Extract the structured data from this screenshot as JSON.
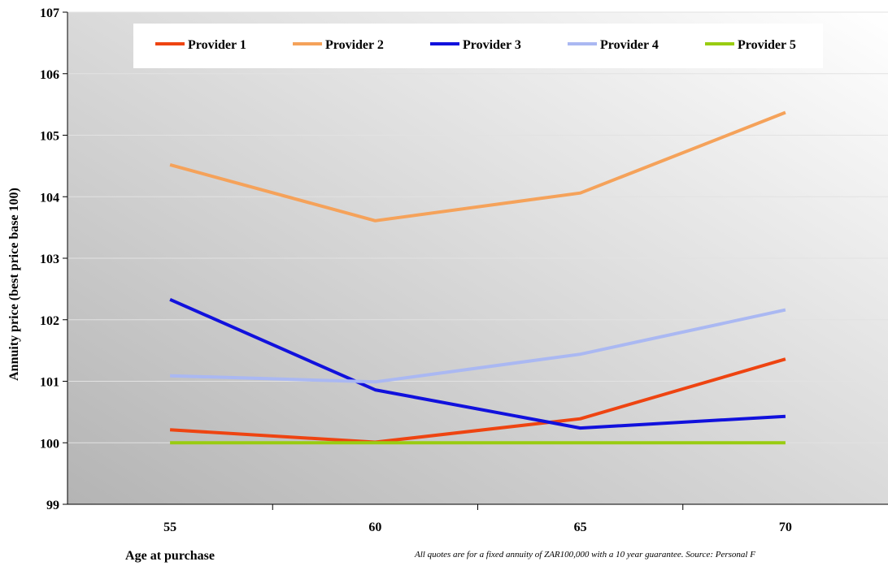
{
  "chart_data": {
    "type": "line",
    "title": "",
    "xlabel": "Age at purchase",
    "ylabel": "Annuity price (best price base 100)",
    "x": [
      55,
      60,
      65,
      70
    ],
    "x_tick_labels": [
      "55",
      "60",
      "65",
      "70"
    ],
    "ylim": [
      99,
      107
    ],
    "y_ticks": [
      99,
      100,
      101,
      102,
      103,
      104,
      105,
      106,
      107
    ],
    "y_tick_labels": [
      "99",
      "100",
      "101",
      "102",
      "103",
      "104",
      "105",
      "106",
      "107"
    ],
    "grid": true,
    "legend_position": "top",
    "series": [
      {
        "name": "Provider 1",
        "color": "#ee4411",
        "values": [
          100.21,
          100.01,
          100.39,
          101.36
        ]
      },
      {
        "name": "Provider 2",
        "color": "#f5a25a",
        "values": [
          104.52,
          103.61,
          104.06,
          105.37
        ]
      },
      {
        "name": "Provider 3",
        "color": "#1111dd",
        "values": [
          102.33,
          100.86,
          100.24,
          100.43
        ]
      },
      {
        "name": "Provider 4",
        "color": "#aab8f2",
        "values": [
          101.09,
          100.99,
          101.44,
          102.16
        ]
      },
      {
        "name": "Provider 5",
        "color": "#99cc11",
        "values": [
          100.0,
          100.0,
          100.0,
          100.0
        ]
      }
    ],
    "footnote": "All quotes are for a fixed annuity of ZAR100,000 with a 10 year guarantee. Source: Personal F"
  }
}
